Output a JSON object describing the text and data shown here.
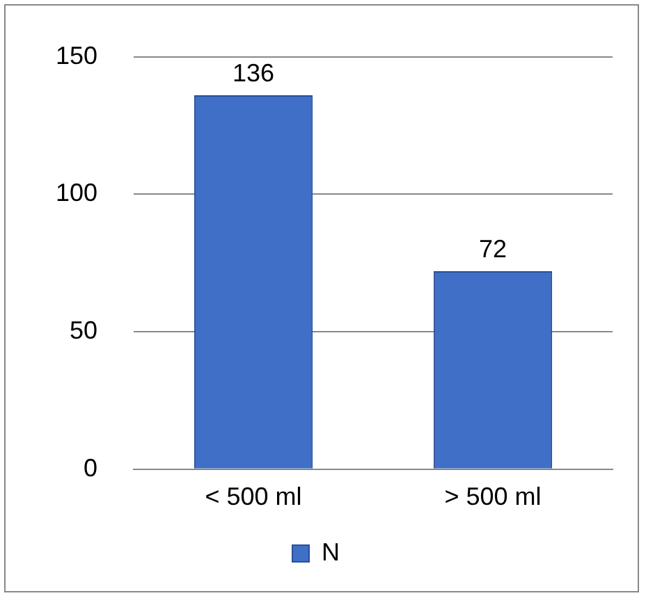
{
  "chart_data": {
    "type": "bar",
    "categories": [
      "< 500 ml",
      "> 500 ml"
    ],
    "series": [
      {
        "name": "N",
        "color": "#3f6fc6",
        "values": [
          136,
          72
        ]
      }
    ],
    "ylim": [
      0,
      150
    ],
    "yticks": [
      0,
      50,
      100,
      150
    ],
    "grid": "y",
    "legend": "bottom",
    "data_labels": true
  }
}
